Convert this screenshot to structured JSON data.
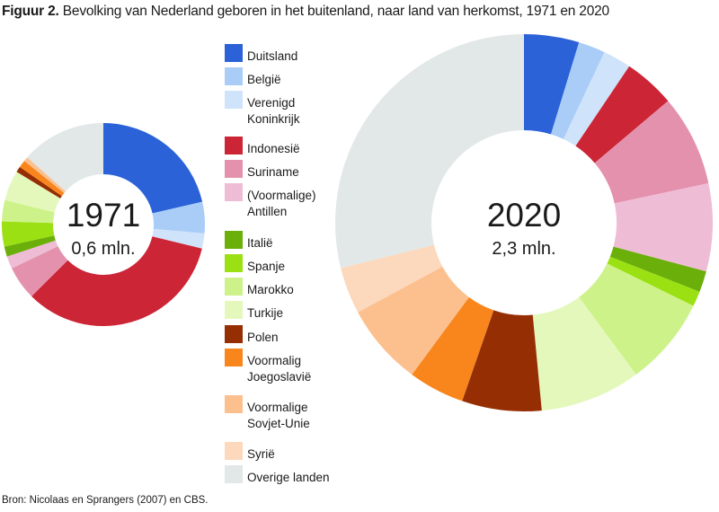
{
  "title": {
    "label": "Figuur 2.",
    "text": "Bevolking van Nederland geboren in het buitenland, naar land van herkomst, 1971 en 2020"
  },
  "source": "Bron: Nicolaas en Sprangers (2007) en CBS.",
  "chart_data": [
    {
      "type": "pie",
      "variant": "donut",
      "year": "1971",
      "total": "0,6 mln.",
      "unit": "percent of total (estimated)",
      "categories": [
        "Duitsland",
        "België",
        "Verenigd Koninkrijk",
        "Indonesië",
        "Suriname",
        "(Voormalige) Antillen",
        "Italië",
        "Spanje",
        "Marokko",
        "Turkije",
        "Polen",
        "Voormalig Joegoslavië",
        "Voormalige Sovjet-Unie",
        "Syrië",
        "Overige landen"
      ],
      "values": [
        21.4,
        5.0,
        2.4,
        33.7,
        5.4,
        2.0,
        1.6,
        4.0,
        3.4,
        4.8,
        0.9,
        1.2,
        0.7,
        0.0,
        13.5
      ]
    },
    {
      "type": "pie",
      "variant": "donut",
      "year": "2020",
      "total": "2,3 mln.",
      "unit": "percent of total (estimated)",
      "categories": [
        "Duitsland",
        "België",
        "Verenigd Koninkrijk",
        "Indonesië",
        "Suriname",
        "(Voormalige) Antillen",
        "Italië",
        "Spanje",
        "Marokko",
        "Turkije",
        "Polen",
        "Voormalig Joegoslavië",
        "Voormalige Sovjet-Unie",
        "Syrië",
        "Overige landen"
      ],
      "values": [
        4.7,
        2.3,
        2.4,
        4.4,
        7.8,
        7.5,
        1.8,
        1.3,
        7.6,
        8.6,
        6.8,
        4.8,
        7.0,
        4.0,
        28.8
      ]
    }
  ],
  "legend": [
    {
      "lines": [
        "Duitsland"
      ],
      "color": "#2b62d8"
    },
    {
      "lines": [
        "België"
      ],
      "color": "#a9cdf7"
    },
    {
      "lines": [
        "Verenigd",
        "Koninkrijk"
      ],
      "color": "#cfe3fa"
    },
    {
      "lines": [
        "Indonesië"
      ],
      "color": "#cc2536"
    },
    {
      "lines": [
        "Suriname"
      ],
      "color": "#e391ad"
    },
    {
      "lines": [
        "(Voormalige)",
        "Antillen"
      ],
      "color": "#efbcd6"
    },
    {
      "lines": [
        "Italië"
      ],
      "color": "#6aaf0a"
    },
    {
      "lines": [
        "Spanje"
      ],
      "color": "#9be012"
    },
    {
      "lines": [
        "Marokko"
      ],
      "color": "#cdf28a"
    },
    {
      "lines": [
        "Turkije"
      ],
      "color": "#e4f8bc"
    },
    {
      "lines": [
        "Polen"
      ],
      "color": "#962e04"
    },
    {
      "lines": [
        "Voormalig",
        "Joegoslavië"
      ],
      "color": "#f8861c"
    },
    {
      "lines": [
        "Voormalige",
        "Sovjet-Unie"
      ],
      "color": "#fcc08f"
    },
    {
      "lines": [
        "Syrië"
      ],
      "color": "#fcd8bd"
    },
    {
      "lines": [
        "Overige landen"
      ],
      "color": "#e2e7e8"
    }
  ]
}
